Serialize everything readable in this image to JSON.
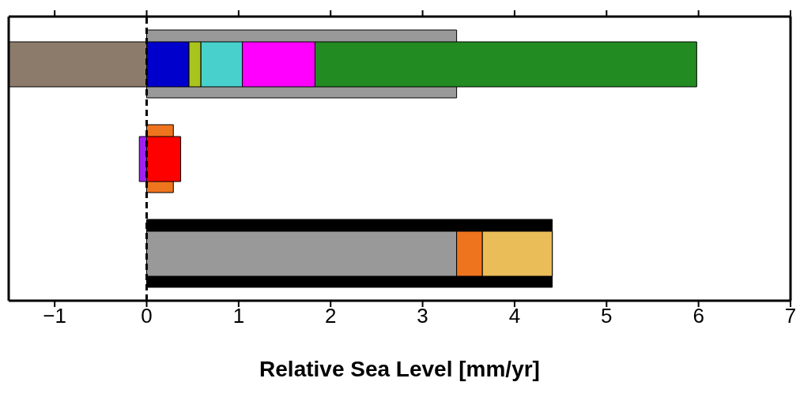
{
  "chart_data": {
    "type": "bar",
    "orientation": "horizontal",
    "xlabel": "Relative Sea Level [mm/yr]",
    "categories": [
      null,
      null,
      null
    ],
    "xlim": [
      -1.5,
      7
    ],
    "xticks": [
      {
        "value": -1,
        "label": "−1"
      },
      0,
      1,
      2,
      3,
      4,
      5,
      6,
      7
    ],
    "grid": false,
    "legend": false,
    "ref_lines": [
      {
        "axis": "x",
        "value": 0,
        "line_style": "dashed",
        "color": "#000000"
      }
    ],
    "series": [
      {
        "color": "#8c7b6b",
        "values": [
          1.5,
          null,
          null
        ],
        "base": [
          -1.5,
          null,
          null
        ]
      },
      {
        "color": "#999999",
        "values": [
          3.37,
          null,
          null
        ],
        "base": [
          0,
          null,
          null
        ]
      },
      {
        "color": "#0000cd",
        "values": [
          0.46,
          null,
          null
        ],
        "base": [
          0,
          null,
          null
        ]
      },
      {
        "color": "#a9c41c",
        "values": [
          0.13,
          null,
          null
        ],
        "base": [
          0.46,
          null,
          null
        ]
      },
      {
        "color": "#48d1cc",
        "values": [
          0.45,
          null,
          null
        ],
        "base": [
          0.59,
          null,
          null
        ]
      },
      {
        "color": "#ff00ff",
        "values": [
          0.79,
          null,
          null
        ],
        "base": [
          1.04,
          null,
          null
        ]
      },
      {
        "color": "#228b22",
        "values": [
          4.15,
          null,
          null
        ],
        "base": [
          1.83,
          null,
          null
        ]
      },
      {
        "color": "#ef741e",
        "values": [
          null,
          0.29,
          null
        ],
        "base": [
          null,
          0,
          null
        ]
      },
      {
        "color": "#a020f0",
        "values": [
          null,
          0.08,
          null
        ],
        "base": [
          null,
          -0.08,
          null
        ]
      },
      {
        "color": "#ff0000",
        "values": [
          null,
          0.37,
          null
        ],
        "base": [
          null,
          0,
          null
        ]
      },
      {
        "color": "#000000",
        "values": [
          null,
          null,
          4.41
        ],
        "base": [
          null,
          null,
          0
        ]
      },
      {
        "color": "#999999",
        "values": [
          null,
          null,
          3.37
        ],
        "base": [
          null,
          null,
          0
        ]
      },
      {
        "color": "#ef741e",
        "values": [
          null,
          null,
          0.28
        ],
        "base": [
          null,
          null,
          3.37
        ]
      },
      {
        "color": "#ebbd58",
        "values": [
          null,
          null,
          0.76
        ],
        "base": [
          null,
          null,
          3.65
        ]
      }
    ]
  }
}
